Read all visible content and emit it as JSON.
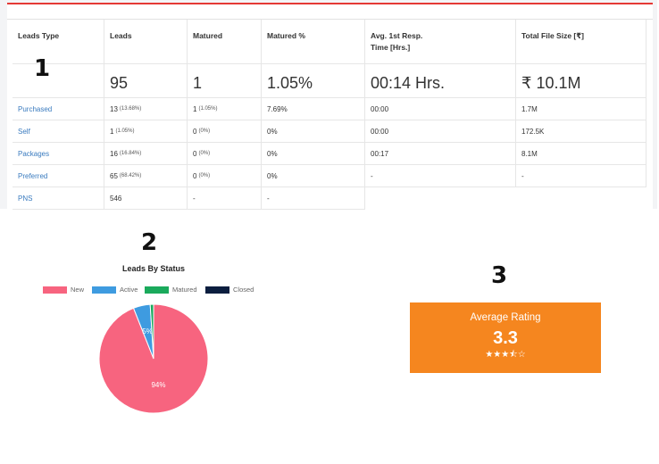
{
  "markers": {
    "one": "1",
    "two": "2",
    "three": "3"
  },
  "table": {
    "headers": {
      "type": "Leads Type",
      "leads": "Leads",
      "matured": "Matured",
      "matured_pct": "Matured %",
      "avg_resp_line1": "Avg. 1st Resp.",
      "avg_resp_line2": "Time [Hrs.]",
      "file_size": "Total File Size [₹]"
    },
    "totals": {
      "leads": "95",
      "matured": "1",
      "matured_pct": "1.05%",
      "avg_resp": "00:14 Hrs.",
      "file_size": "₹ 10.1M"
    },
    "rows": [
      {
        "type": "Purchased",
        "leads": "13",
        "leads_pct": "(13.68%)",
        "matured": "1",
        "matured_pct_small": "(1.05%)",
        "matured_pct": "7.69%",
        "avg_resp": "00:00",
        "file_size": "1.7M"
      },
      {
        "type": "Self",
        "leads": "1",
        "leads_pct": "(1.05%)",
        "matured": "0",
        "matured_pct_small": "(0%)",
        "matured_pct": "0%",
        "avg_resp": "00:00",
        "file_size": "172.5K"
      },
      {
        "type": "Packages",
        "leads": "16",
        "leads_pct": "(16.84%)",
        "matured": "0",
        "matured_pct_small": "(0%)",
        "matured_pct": "0%",
        "avg_resp": "00:17",
        "file_size": "8.1M"
      },
      {
        "type": "Preferred",
        "leads": "65",
        "leads_pct": "(68.42%)",
        "matured": "0",
        "matured_pct_small": "(0%)",
        "matured_pct": "0%",
        "avg_resp": "-",
        "file_size": "-"
      },
      {
        "type": "PNS",
        "leads": "546",
        "leads_pct": "",
        "matured": "-",
        "matured_pct_small": "",
        "matured_pct": "-"
      }
    ]
  },
  "chart_data": {
    "type": "pie",
    "title": "Leads By Status",
    "legend_position": "top",
    "categories": [
      "New",
      "Active",
      "Matured",
      "Closed"
    ],
    "values": [
      94,
      5,
      1,
      0
    ],
    "colors": [
      "#f7647f",
      "#3e9be0",
      "#1aaa5c",
      "#0b1e3f"
    ],
    "slice_labels": [
      "94%",
      "5%",
      "",
      ""
    ]
  },
  "rating": {
    "label": "Average Rating",
    "value": "3.3",
    "stars": "★★★⯪☆",
    "star_value": 3.3,
    "color": "#f5861f"
  }
}
